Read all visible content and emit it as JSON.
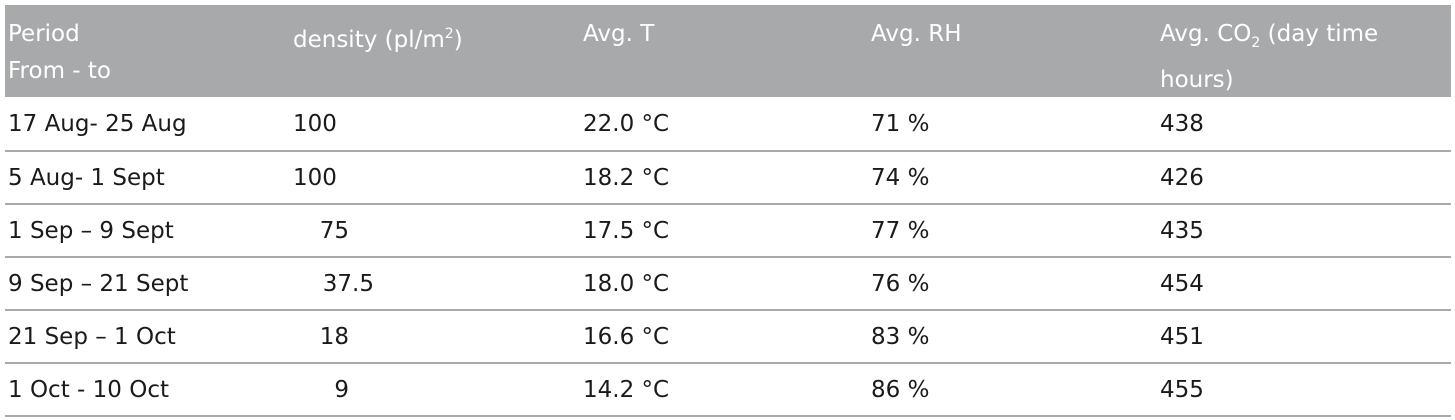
{
  "header": {
    "period_line1": "Period",
    "period_line2": "From - to",
    "density_prefix": "density (pl/m",
    "density_sup": "2",
    "density_suffix": ")",
    "temp": "Avg. T",
    "rh": "Avg. RH",
    "co2_prefix": "Avg. CO",
    "co2_sub": "2",
    "co2_suffix": " (day time",
    "co2_line2": "hours)"
  },
  "rows": [
    {
      "period": "17 Aug- 25 Aug",
      "density": "100",
      "temp": "22.0 °C",
      "rh": "71 %",
      "co2": "438"
    },
    {
      "period": "5 Aug- 1 Sept",
      "density": "100",
      "temp": "18.2 °C",
      "rh": "74 %",
      "co2": "426"
    },
    {
      "period": "1 Sep – 9 Sept",
      "density": "75",
      "temp": "17.5 °C",
      "rh": "77 %",
      "co2": "435"
    },
    {
      "period": "9 Sep – 21 Sept",
      "density": "37.5",
      "temp": "18.0 °C",
      "rh": "76 %",
      "co2": "454"
    },
    {
      "period": "21 Sep – 1 Oct",
      "density": "18",
      "temp": "16.6 °C",
      "rh": "83 %",
      "co2": "451"
    },
    {
      "period": "1 Oct - 10 Oct",
      "density": "9",
      "temp": "14.2 °C",
      "rh": "86 %",
      "co2": "455"
    }
  ],
  "colors": {
    "header_bg": "#a7a9ab",
    "header_text": "#ffffff",
    "rule": "#a7a9ab"
  }
}
